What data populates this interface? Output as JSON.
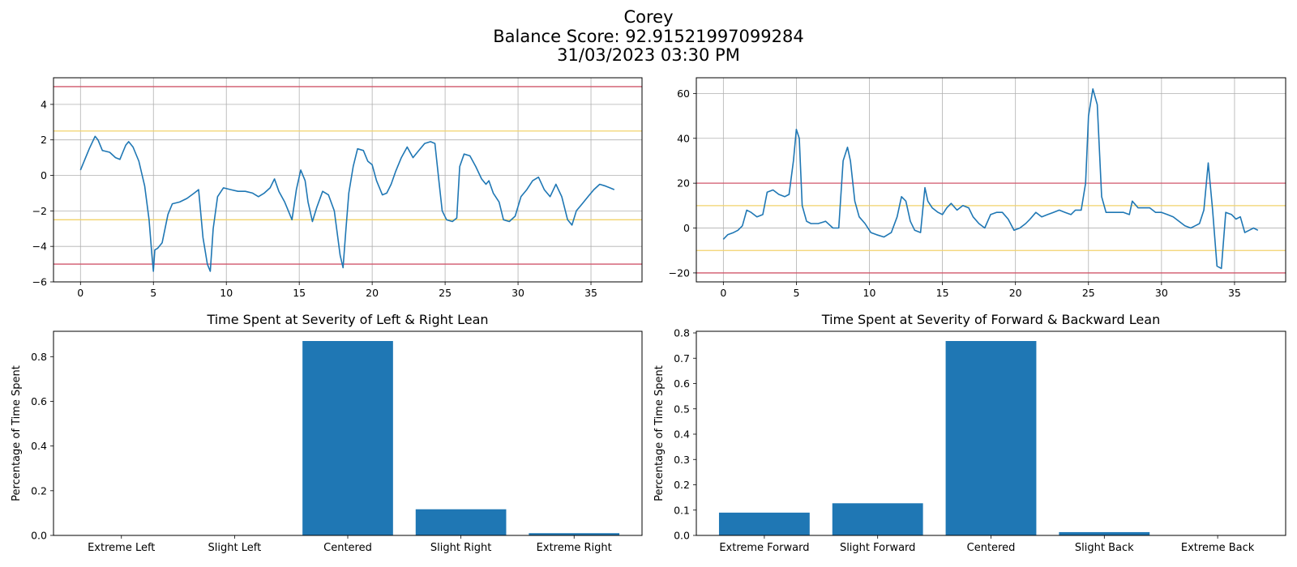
{
  "figure": {
    "title_line1": "Corey",
    "title_line2": "Balance Score: 92.91521997099284",
    "title_line3": "31/03/2023 03:30 PM"
  },
  "colors": {
    "series": "#1f77b4",
    "red_line": "#d0576b",
    "yellow_line": "#f2d36b",
    "grid": "#b0b0b0"
  },
  "chart_data": [
    {
      "type": "line",
      "title": "",
      "xlabel": "",
      "ylabel": "",
      "xlim": [
        -1.85,
        38.5
      ],
      "ylim": [
        -6,
        5.5
      ],
      "xticks": [
        0,
        5,
        10,
        15,
        20,
        25,
        30,
        35
      ],
      "yticks": [
        -6,
        -4,
        -2,
        0,
        2,
        4
      ],
      "grid": true,
      "hlines": [
        {
          "y": 5,
          "color": "red"
        },
        {
          "y": -5,
          "color": "red"
        },
        {
          "y": 2.5,
          "color": "yellow"
        },
        {
          "y": -2.5,
          "color": "yellow"
        }
      ],
      "series": [
        {
          "x": [
            0,
            0.3,
            0.6,
            1.0,
            1.2,
            1.5,
            2.0,
            2.4,
            2.7,
            2.9,
            3.1,
            3.3,
            3.6,
            4.0,
            4.4,
            4.7,
            4.9,
            5.0,
            5.1,
            5.3,
            5.6,
            6.0,
            6.3,
            6.8,
            7.3,
            7.8,
            8.1,
            8.4,
            8.7,
            8.9,
            9.1,
            9.4,
            9.8,
            10.3,
            10.8,
            11.3,
            11.8,
            12.2,
            12.6,
            13.0,
            13.3,
            13.6,
            14.0,
            14.5,
            14.8,
            15.1,
            15.4,
            15.6,
            15.9,
            16.2,
            16.6,
            17.0,
            17.4,
            17.8,
            18.0,
            18.2,
            18.4,
            18.7,
            19.0,
            19.4,
            19.7,
            20.0,
            20.3,
            20.7,
            21.0,
            21.3,
            21.6,
            22.0,
            22.4,
            22.8,
            23.2,
            23.6,
            24.0,
            24.3,
            24.6,
            24.8,
            25.1,
            25.5,
            25.8,
            26.0,
            26.3,
            26.7,
            27.1,
            27.5,
            27.8,
            28.0,
            28.3,
            28.7,
            29.0,
            29.4,
            29.8,
            30.2,
            30.6,
            31.0,
            31.4,
            31.8,
            32.2,
            32.6,
            33.0,
            33.4,
            33.7,
            34.0,
            34.4,
            34.8,
            35.2,
            35.6,
            36.0,
            36.3,
            36.6
          ],
          "y": [
            0.3,
            0.9,
            1.5,
            2.2,
            2.0,
            1.4,
            1.3,
            1.0,
            0.9,
            1.3,
            1.7,
            1.9,
            1.6,
            0.8,
            -0.6,
            -2.5,
            -4.5,
            -5.4,
            -4.2,
            -4.1,
            -3.8,
            -2.2,
            -1.6,
            -1.5,
            -1.3,
            -1.0,
            -0.8,
            -3.5,
            -5.0,
            -5.4,
            -3.0,
            -1.2,
            -0.7,
            -0.8,
            -0.9,
            -0.9,
            -1.0,
            -1.2,
            -1.0,
            -0.7,
            -0.2,
            -0.9,
            -1.5,
            -2.5,
            -0.8,
            0.3,
            -0.3,
            -1.5,
            -2.6,
            -1.8,
            -0.9,
            -1.1,
            -2.0,
            -4.5,
            -5.2,
            -3.0,
            -1.0,
            0.5,
            1.5,
            1.4,
            0.8,
            0.6,
            -0.3,
            -1.1,
            -1.0,
            -0.5,
            0.2,
            1.0,
            1.6,
            1.0,
            1.4,
            1.8,
            1.9,
            1.8,
            -0.5,
            -2.0,
            -2.5,
            -2.6,
            -2.4,
            0.5,
            1.2,
            1.1,
            0.5,
            -0.2,
            -0.5,
            -0.3,
            -1.0,
            -1.5,
            -2.5,
            -2.6,
            -2.3,
            -1.2,
            -0.8,
            -0.3,
            -0.1,
            -0.8,
            -1.2,
            -0.5,
            -1.2,
            -2.5,
            -2.8,
            -2.0,
            -1.6,
            -1.2,
            -0.8,
            -0.5,
            -0.6,
            -0.7,
            -0.8
          ]
        }
      ]
    },
    {
      "type": "line",
      "title": "",
      "xlabel": "",
      "ylabel": "",
      "xlim": [
        -1.85,
        38.5
      ],
      "ylim": [
        -24,
        67
      ],
      "xticks": [
        0,
        5,
        10,
        15,
        20,
        25,
        30,
        35
      ],
      "yticks": [
        -20,
        0,
        20,
        40,
        60
      ],
      "grid": true,
      "hlines": [
        {
          "y": 20,
          "color": "red"
        },
        {
          "y": -20,
          "color": "red"
        },
        {
          "y": 10,
          "color": "yellow"
        },
        {
          "y": -10,
          "color": "yellow"
        }
      ],
      "series": [
        {
          "x": [
            0,
            0.3,
            0.7,
            1.0,
            1.3,
            1.6,
            1.9,
            2.3,
            2.7,
            3.0,
            3.4,
            3.8,
            4.2,
            4.5,
            4.8,
            5.0,
            5.2,
            5.4,
            5.7,
            6.0,
            6.5,
            7.0,
            7.5,
            7.9,
            8.2,
            8.5,
            8.7,
            9.0,
            9.3,
            9.7,
            10.1,
            10.5,
            11.0,
            11.5,
            11.9,
            12.2,
            12.5,
            12.8,
            13.1,
            13.5,
            13.8,
            14.0,
            14.3,
            14.7,
            15.0,
            15.3,
            15.6,
            16.0,
            16.4,
            16.8,
            17.1,
            17.5,
            17.9,
            18.3,
            18.7,
            19.1,
            19.5,
            19.9,
            20.3,
            20.7,
            21.0,
            21.4,
            21.8,
            22.2,
            22.6,
            23.0,
            23.4,
            23.8,
            24.1,
            24.5,
            24.8,
            25.0,
            25.3,
            25.6,
            25.9,
            26.2,
            26.6,
            27.0,
            27.4,
            27.8,
            28.0,
            28.4,
            28.8,
            29.2,
            29.6,
            30.0,
            30.4,
            30.8,
            31.2,
            31.6,
            32.0,
            32.3,
            32.6,
            32.9,
            33.2,
            33.5,
            33.8,
            34.1,
            34.4,
            34.8,
            35.1,
            35.4,
            35.7,
            36.0,
            36.3,
            36.6
          ],
          "y": [
            -5,
            -3,
            -2,
            -1,
            1,
            8,
            7,
            5,
            6,
            16,
            17,
            15,
            14,
            15,
            30,
            44,
            40,
            10,
            3,
            2,
            2,
            3,
            0,
            0,
            30,
            36,
            30,
            12,
            5,
            2,
            -2,
            -3,
            -4,
            -2,
            5,
            14,
            12,
            3,
            -1,
            -2,
            18,
            12,
            9,
            7,
            6,
            9,
            11,
            8,
            10,
            9,
            5,
            2,
            0,
            6,
            7,
            7,
            4,
            -1,
            0,
            2,
            4,
            7,
            5,
            6,
            7,
            8,
            7,
            6,
            8,
            8,
            20,
            50,
            62,
            55,
            14,
            7,
            7,
            7,
            7,
            6,
            12,
            9,
            9,
            9,
            7,
            7,
            6,
            5,
            3,
            1,
            0,
            1,
            2,
            8,
            29,
            8,
            -17,
            -18,
            7,
            6,
            4,
            5,
            -2,
            -1,
            0,
            -1
          ]
        }
      ]
    },
    {
      "type": "bar",
      "title": "Time Spent at Severity of Left & Right Lean",
      "xlabel": "",
      "ylabel": "Percentage of Time Spent",
      "categories": [
        "Extreme Left",
        "Slight Left",
        "Centered",
        "Slight Right",
        "Extreme Right"
      ],
      "values": [
        0.0,
        0.0,
        0.87,
        0.117,
        0.01
      ],
      "ylim": [
        0,
        0.9135
      ],
      "yticks": [
        0.0,
        0.2,
        0.4,
        0.6,
        0.8
      ],
      "yticklabels": [
        "0.0",
        "0.2",
        "0.4",
        "0.6",
        "0.8"
      ],
      "grid": false
    },
    {
      "type": "bar",
      "title": "Time Spent at Severity of Forward & Backward Lean",
      "xlabel": "",
      "ylabel": "Percentage of Time Spent",
      "categories": [
        "Extreme Forward",
        "Slight Forward",
        "Centered",
        "Slight Back",
        "Extreme Back"
      ],
      "values": [
        0.09,
        0.127,
        0.768,
        0.013,
        0.0
      ],
      "ylim": [
        0,
        0.8064
      ],
      "yticks": [
        0.0,
        0.1,
        0.2,
        0.3,
        0.4,
        0.5,
        0.6,
        0.7,
        0.8
      ],
      "yticklabels": [
        "0.0",
        "0.1",
        "0.2",
        "0.3",
        "0.4",
        "0.5",
        "0.6",
        "0.7",
        "0.8"
      ],
      "grid": false
    }
  ]
}
